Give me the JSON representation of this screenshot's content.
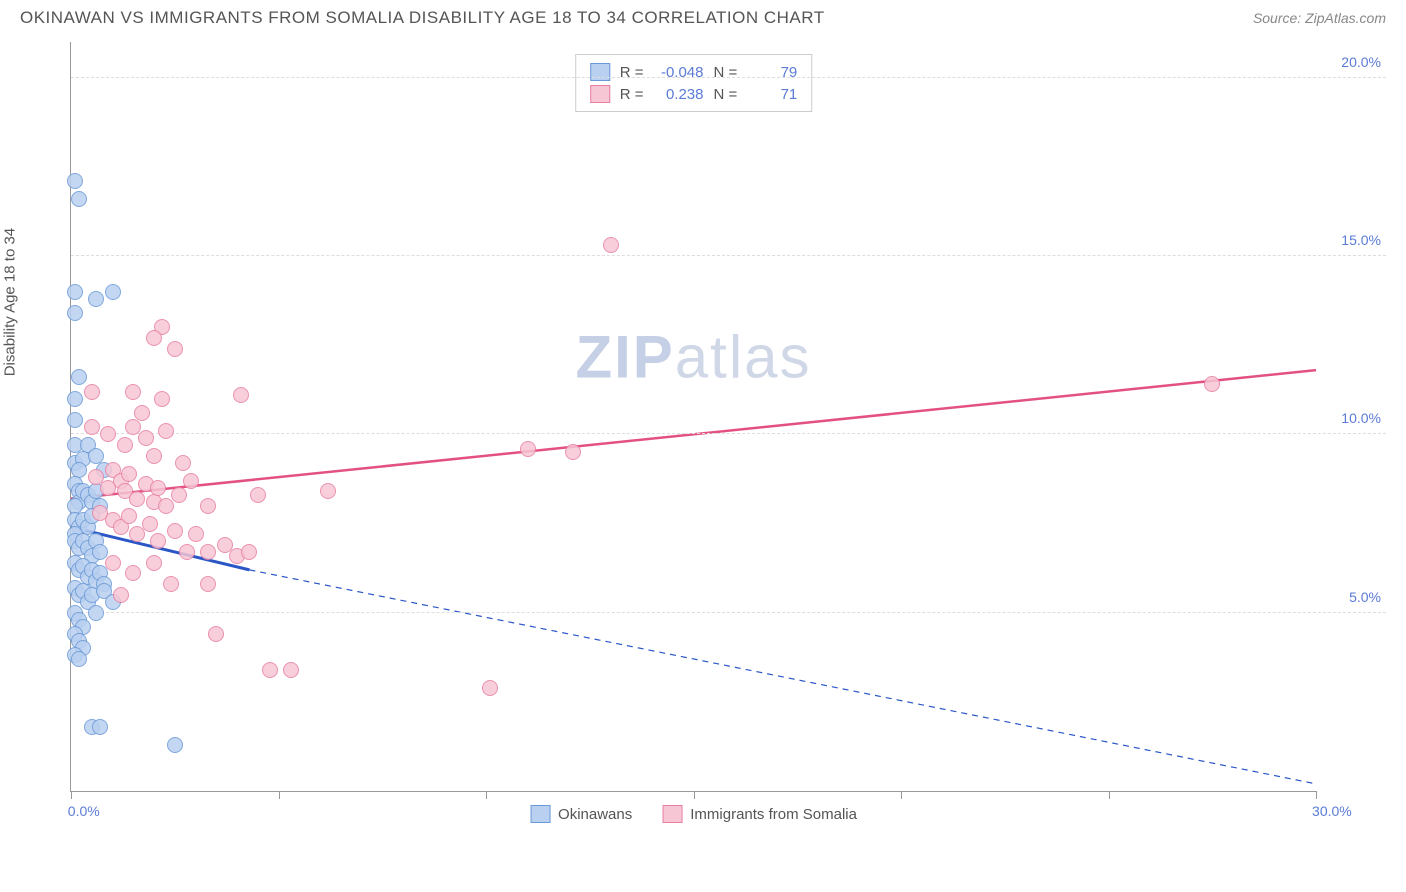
{
  "title": "OKINAWAN VS IMMIGRANTS FROM SOMALIA DISABILITY AGE 18 TO 34 CORRELATION CHART",
  "source_label": "Source:",
  "source_value": "ZipAtlas.com",
  "ylabel": "Disability Age 18 to 34",
  "watermark_bold": "ZIP",
  "watermark_light": "atlas",
  "chart": {
    "type": "scatter",
    "xlim": [
      0,
      30
    ],
    "ylim": [
      0,
      21
    ],
    "y_ticks": [
      5,
      10,
      15,
      20
    ],
    "y_tick_labels": [
      "5.0%",
      "10.0%",
      "15.0%",
      "20.0%"
    ],
    "x_ticks": [
      0,
      5,
      10,
      15,
      20,
      25,
      30
    ],
    "x_tick_labels_shown": {
      "0": "0.0%",
      "30": "30.0%"
    },
    "background_color": "#ffffff",
    "grid_color": "#dddddd",
    "axis_color": "#999999",
    "label_color": "#5b7bd6",
    "series": [
      {
        "name": "Okinawans",
        "fill": "#b9d0f0",
        "stroke": "#6a9ad6",
        "line_color": "#2a56c6",
        "line_dash_ext": true,
        "R": "-0.048",
        "N": "79",
        "trend": {
          "x1": 0,
          "y1": 7.4,
          "x2": 4.3,
          "y2": 6.2,
          "x3": 30,
          "y3": 0.2
        },
        "points": [
          [
            0.1,
            17.1
          ],
          [
            0.2,
            16.6
          ],
          [
            0.1,
            14.0
          ],
          [
            0.1,
            13.4
          ],
          [
            0.6,
            13.8
          ],
          [
            1.0,
            14.0
          ],
          [
            0.2,
            11.6
          ],
          [
            0.1,
            11.0
          ],
          [
            0.1,
            10.4
          ],
          [
            0.1,
            9.7
          ],
          [
            0.1,
            9.2
          ],
          [
            0.3,
            9.3
          ],
          [
            0.2,
            9.0
          ],
          [
            0.4,
            9.7
          ],
          [
            0.6,
            9.4
          ],
          [
            0.8,
            9.0
          ],
          [
            0.1,
            8.6
          ],
          [
            0.2,
            8.4
          ],
          [
            0.2,
            8.1
          ],
          [
            0.1,
            8.0
          ],
          [
            0.3,
            8.4
          ],
          [
            0.4,
            8.3
          ],
          [
            0.5,
            8.1
          ],
          [
            0.6,
            8.4
          ],
          [
            0.7,
            8.0
          ],
          [
            0.1,
            7.6
          ],
          [
            0.2,
            7.4
          ],
          [
            0.1,
            7.2
          ],
          [
            0.3,
            7.6
          ],
          [
            0.4,
            7.4
          ],
          [
            0.5,
            7.7
          ],
          [
            0.1,
            7.0
          ],
          [
            0.2,
            6.8
          ],
          [
            0.3,
            7.0
          ],
          [
            0.4,
            6.8
          ],
          [
            0.5,
            6.6
          ],
          [
            0.6,
            7.0
          ],
          [
            0.7,
            6.7
          ],
          [
            0.1,
            6.4
          ],
          [
            0.2,
            6.2
          ],
          [
            0.3,
            6.3
          ],
          [
            0.4,
            6.0
          ],
          [
            0.5,
            6.2
          ],
          [
            0.6,
            5.9
          ],
          [
            0.7,
            6.1
          ],
          [
            0.8,
            5.8
          ],
          [
            0.1,
            5.7
          ],
          [
            0.2,
            5.5
          ],
          [
            0.3,
            5.6
          ],
          [
            0.4,
            5.3
          ],
          [
            0.5,
            5.5
          ],
          [
            0.6,
            5.0
          ],
          [
            0.8,
            5.6
          ],
          [
            1.0,
            5.3
          ],
          [
            0.1,
            5.0
          ],
          [
            0.2,
            4.8
          ],
          [
            0.3,
            4.6
          ],
          [
            0.1,
            4.4
          ],
          [
            0.2,
            4.2
          ],
          [
            0.3,
            4.0
          ],
          [
            0.1,
            3.8
          ],
          [
            0.2,
            3.7
          ],
          [
            0.5,
            1.8
          ],
          [
            0.7,
            1.8
          ],
          [
            2.5,
            1.3
          ]
        ]
      },
      {
        "name": "Immigrants from Somalia",
        "fill": "#f6c6d4",
        "stroke": "#e87fa3",
        "line_color": "#e35184",
        "line_dash_ext": false,
        "R": "0.238",
        "N": "71",
        "trend": {
          "x1": 0,
          "y1": 8.2,
          "x2": 30,
          "y2": 11.8
        },
        "points": [
          [
            2.2,
            13.0
          ],
          [
            2.0,
            12.7
          ],
          [
            2.5,
            12.4
          ],
          [
            0.5,
            11.2
          ],
          [
            1.5,
            11.2
          ],
          [
            1.7,
            10.6
          ],
          [
            2.2,
            11.0
          ],
          [
            4.1,
            11.1
          ],
          [
            13.0,
            15.3
          ],
          [
            0.5,
            10.2
          ],
          [
            0.9,
            10.0
          ],
          [
            1.3,
            9.7
          ],
          [
            1.5,
            10.2
          ],
          [
            1.8,
            9.9
          ],
          [
            2.0,
            9.4
          ],
          [
            2.3,
            10.1
          ],
          [
            2.7,
            9.2
          ],
          [
            11.0,
            9.6
          ],
          [
            12.1,
            9.5
          ],
          [
            0.6,
            8.8
          ],
          [
            0.9,
            8.5
          ],
          [
            1.0,
            9.0
          ],
          [
            1.2,
            8.7
          ],
          [
            1.3,
            8.4
          ],
          [
            1.4,
            8.9
          ],
          [
            1.6,
            8.2
          ],
          [
            1.8,
            8.6
          ],
          [
            2.0,
            8.1
          ],
          [
            2.1,
            8.5
          ],
          [
            2.3,
            8.0
          ],
          [
            2.6,
            8.3
          ],
          [
            2.9,
            8.7
          ],
          [
            3.3,
            8.0
          ],
          [
            4.5,
            8.3
          ],
          [
            6.2,
            8.4
          ],
          [
            0.7,
            7.8
          ],
          [
            1.0,
            7.6
          ],
          [
            1.2,
            7.4
          ],
          [
            1.4,
            7.7
          ],
          [
            1.6,
            7.2
          ],
          [
            1.9,
            7.5
          ],
          [
            2.1,
            7.0
          ],
          [
            2.5,
            7.3
          ],
          [
            2.8,
            6.7
          ],
          [
            3.0,
            7.2
          ],
          [
            3.3,
            6.7
          ],
          [
            3.7,
            6.9
          ],
          [
            4.0,
            6.6
          ],
          [
            4.3,
            6.7
          ],
          [
            1.0,
            6.4
          ],
          [
            1.5,
            6.1
          ],
          [
            2.0,
            6.4
          ],
          [
            2.4,
            5.8
          ],
          [
            3.3,
            5.8
          ],
          [
            1.2,
            5.5
          ],
          [
            3.5,
            4.4
          ],
          [
            4.8,
            3.4
          ],
          [
            5.3,
            3.4
          ],
          [
            10.1,
            2.9
          ],
          [
            27.5,
            11.4
          ]
        ]
      }
    ]
  },
  "legend": {
    "series1": "Okinawans",
    "series2": "Immigrants from Somalia"
  },
  "stats_labels": {
    "R": "R =",
    "N": "N ="
  }
}
